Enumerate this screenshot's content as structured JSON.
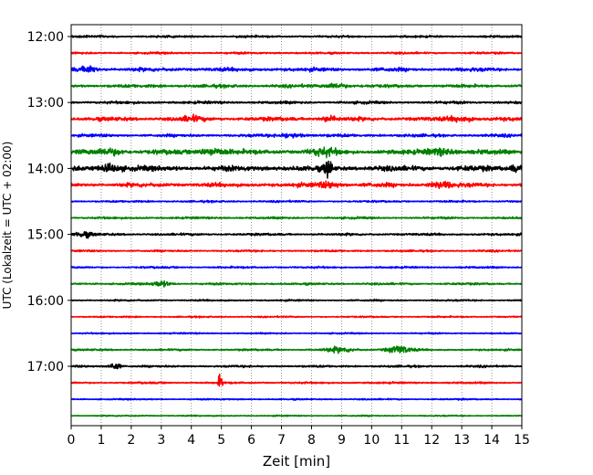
{
  "chart_data": {
    "type": "line",
    "chart_kind": "helicorder seismogram",
    "title": "",
    "xlabel": "Zeit  [min]",
    "ylabel": "UTC (Lokalzeit = UTC + 02:00)",
    "xlim": [
      0,
      15
    ],
    "x_ticks": [
      "0",
      "1",
      "2",
      "3",
      "4",
      "5",
      "6",
      "7",
      "8",
      "9",
      "10",
      "11",
      "12",
      "13",
      "14",
      "15"
    ],
    "vertical_grid": "dotted at every minute",
    "trace_color_cycle": [
      "#000000",
      "#ff0000",
      "#0000ff",
      "#008000"
    ],
    "y_ticks": [
      {
        "label": "12:00",
        "row": 0
      },
      {
        "label": "13:00",
        "row": 4
      },
      {
        "label": "14:00",
        "row": 8
      },
      {
        "label": "15:00",
        "row": 12
      },
      {
        "label": "16:00",
        "row": 16
      },
      {
        "label": "17:00",
        "row": 20
      }
    ],
    "row_start_times": [
      "12:00",
      "12:15",
      "12:30",
      "12:45",
      "13:00",
      "13:15",
      "13:30",
      "13:45",
      "14:00",
      "14:15",
      "14:30",
      "14:45",
      "15:00",
      "15:15",
      "15:30",
      "15:45",
      "16:00",
      "16:15",
      "16:30",
      "16:45",
      "17:00",
      "17:15",
      "17:30",
      "17:45"
    ],
    "row_activity": [
      0.5,
      0.5,
      0.9,
      0.75,
      0.65,
      0.95,
      0.7,
      1.1,
      1.3,
      1.0,
      0.45,
      0.5,
      0.55,
      0.45,
      0.45,
      0.5,
      0.4,
      0.35,
      0.35,
      0.45,
      0.5,
      0.45,
      0.35,
      0.3
    ],
    "events": [
      {
        "row": 2,
        "minute": 0.6,
        "amplitude": 1.4,
        "duration_min": 0.5
      },
      {
        "row": 3,
        "minute": 8.8,
        "amplitude": 1.2,
        "duration_min": 0.7
      },
      {
        "row": 5,
        "minute": 4.0,
        "amplitude": 1.0,
        "duration_min": 0.7
      },
      {
        "row": 5,
        "minute": 8.6,
        "amplitude": 1.0,
        "duration_min": 0.6
      },
      {
        "row": 5,
        "minute": 13.0,
        "amplitude": 1.2,
        "duration_min": 0.8
      },
      {
        "row": 6,
        "minute": 7.3,
        "amplitude": 1.0,
        "duration_min": 0.8
      },
      {
        "row": 7,
        "minute": 1.3,
        "amplitude": 1.4,
        "duration_min": 0.9
      },
      {
        "row": 7,
        "minute": 4.7,
        "amplitude": 1.5,
        "duration_min": 1.0
      },
      {
        "row": 7,
        "minute": 8.4,
        "amplitude": 1.5,
        "duration_min": 0.9
      },
      {
        "row": 7,
        "minute": 12.3,
        "amplitude": 1.4,
        "duration_min": 1.0
      },
      {
        "row": 8,
        "minute": 1.3,
        "amplitude": 1.5,
        "duration_min": 0.8
      },
      {
        "row": 8,
        "minute": 8.55,
        "amplitude": 4.5,
        "duration_min": 0.25
      },
      {
        "row": 8,
        "minute": 14.8,
        "amplitude": 1.4,
        "duration_min": 0.4
      },
      {
        "row": 9,
        "minute": 8.6,
        "amplitude": 1.3,
        "duration_min": 0.8
      },
      {
        "row": 9,
        "minute": 12.3,
        "amplitude": 1.3,
        "duration_min": 0.8
      },
      {
        "row": 12,
        "minute": 0.4,
        "amplitude": 1.3,
        "duration_min": 0.6
      },
      {
        "row": 15,
        "minute": 3.0,
        "amplitude": 1.3,
        "duration_min": 0.6
      },
      {
        "row": 19,
        "minute": 8.9,
        "amplitude": 1.1,
        "duration_min": 1.0
      },
      {
        "row": 19,
        "minute": 10.9,
        "amplitude": 1.9,
        "duration_min": 0.8
      },
      {
        "row": 20,
        "minute": 1.45,
        "amplitude": 1.7,
        "duration_min": 0.4
      },
      {
        "row": 21,
        "minute": 4.97,
        "amplitude": 4.2,
        "duration_min": 0.15
      }
    ]
  }
}
